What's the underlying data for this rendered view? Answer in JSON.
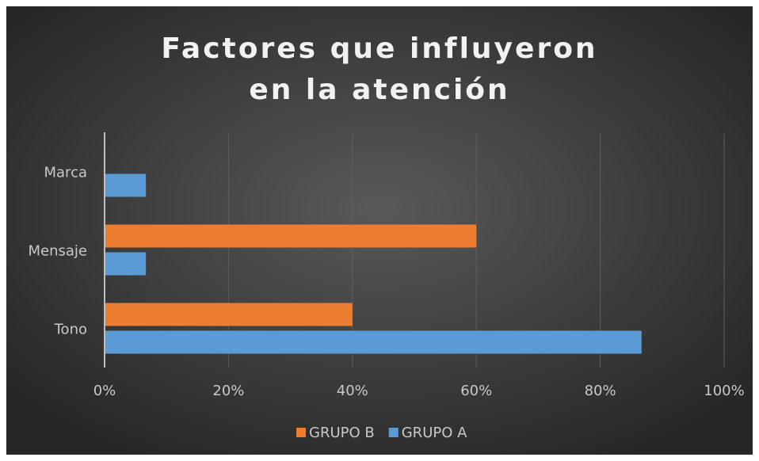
{
  "chart_data": {
    "type": "bar",
    "orientation": "horizontal",
    "title": "Factores que influyeron en la atención",
    "categories": [
      "Marca",
      "Mensaje",
      "Tono"
    ],
    "series": [
      {
        "name": "GRUPO B",
        "color": "#ed7d31",
        "values": [
          0,
          60,
          40
        ]
      },
      {
        "name": "GRUPO A",
        "color": "#5b9bd5",
        "values": [
          6.67,
          6.67,
          86.67
        ]
      }
    ],
    "xlim": [
      0,
      100
    ],
    "xticks": [
      {
        "value": 0,
        "label": "0%"
      },
      {
        "value": 20,
        "label": "20%"
      },
      {
        "value": 40,
        "label": "40%"
      },
      {
        "value": 60,
        "label": "60%"
      },
      {
        "value": 80,
        "label": "80%"
      },
      {
        "value": 100,
        "label": "100%"
      }
    ],
    "grid": true,
    "legend": "bottom"
  }
}
